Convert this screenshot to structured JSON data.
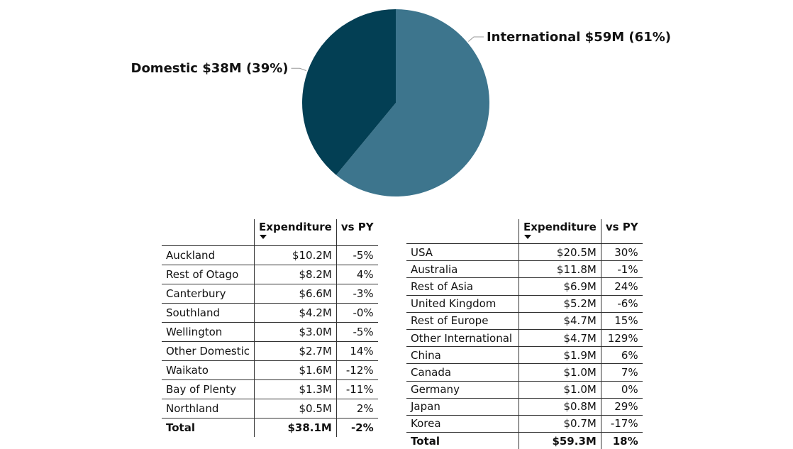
{
  "chart_data": [
    {
      "type": "pie",
      "slices": [
        {
          "label": "Domestic $38M (39%)",
          "value": 38,
          "percent": 39,
          "color": "#033F54"
        },
        {
          "label": "International $59M (61%)",
          "value": 59,
          "percent": 61,
          "color": "#3D758D"
        }
      ]
    },
    {
      "type": "table",
      "columns": [
        "",
        "Expenditure",
        "vs PY"
      ],
      "rows": [
        [
          "Auckland",
          "$10.2M",
          "-5%"
        ],
        [
          "Rest of Otago",
          "$8.2M",
          "4%"
        ],
        [
          "Canterbury",
          "$6.6M",
          "-3%"
        ],
        [
          "Southland",
          "$4.2M",
          "-0%"
        ],
        [
          "Wellington",
          "$3.0M",
          "-5%"
        ],
        [
          "Other Domestic",
          "$2.7M",
          "14%"
        ],
        [
          "Waikato",
          "$1.6M",
          "-12%"
        ],
        [
          "Bay of Plenty",
          "$1.3M",
          "-11%"
        ],
        [
          "Northland",
          "$0.5M",
          "2%"
        ]
      ],
      "total": [
        "Total",
        "$38.1M",
        "-2%"
      ]
    },
    {
      "type": "table",
      "columns": [
        "",
        "Expenditure",
        "vs PY"
      ],
      "rows": [
        [
          "USA",
          "$20.5M",
          "30%"
        ],
        [
          "Australia",
          "$11.8M",
          "-1%"
        ],
        [
          "Rest of Asia",
          "$6.9M",
          "24%"
        ],
        [
          "United Kingdom",
          "$5.2M",
          "-6%"
        ],
        [
          "Rest of Europe",
          "$4.7M",
          "15%"
        ],
        [
          "Other International",
          "$4.7M",
          "129%"
        ],
        [
          "China",
          "$1.9M",
          "6%"
        ],
        [
          "Canada",
          "$1.0M",
          "7%"
        ],
        [
          "Germany",
          "$1.0M",
          "0%"
        ],
        [
          "Japan",
          "$0.8M",
          "29%"
        ],
        [
          "Korea",
          "$0.7M",
          "-17%"
        ]
      ],
      "total": [
        "Total",
        "$59.3M",
        "18%"
      ]
    }
  ]
}
